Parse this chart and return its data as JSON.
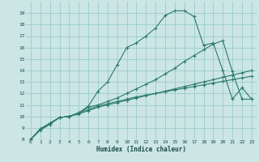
{
  "xlabel": "Humidex (Indice chaleur)",
  "xlim": [
    -0.5,
    23.5
  ],
  "ylim": [
    8,
    20
  ],
  "xticks": [
    0,
    1,
    2,
    3,
    4,
    5,
    6,
    7,
    8,
    9,
    10,
    11,
    12,
    13,
    14,
    15,
    16,
    17,
    18,
    19,
    20,
    21,
    22,
    23
  ],
  "yticks": [
    8,
    9,
    10,
    11,
    12,
    13,
    14,
    15,
    16,
    17,
    18,
    19
  ],
  "background_color": "#cce5e5",
  "grid_color": "#99cccc",
  "line_color": "#2a7a6a",
  "line1_x": [
    0,
    1,
    2,
    3,
    4,
    5,
    6,
    7,
    8,
    9,
    10,
    11,
    12,
    13,
    14,
    15,
    16,
    17,
    18,
    19,
    20,
    21,
    22,
    23
  ],
  "line1_y": [
    8.0,
    8.8,
    9.3,
    9.9,
    10.0,
    10.3,
    10.6,
    10.9,
    11.1,
    11.3,
    11.5,
    11.7,
    11.85,
    12.0,
    12.15,
    12.3,
    12.45,
    12.6,
    12.75,
    12.9,
    13.05,
    13.2,
    13.35,
    13.5
  ],
  "line2_x": [
    0,
    1,
    2,
    3,
    4,
    5,
    6,
    7,
    8,
    9,
    10,
    11,
    12,
    13,
    14,
    15,
    16,
    17,
    18,
    19,
    20,
    21,
    22,
    23
  ],
  "line2_y": [
    8.0,
    8.9,
    9.4,
    9.9,
    10.0,
    10.2,
    10.5,
    10.8,
    11.0,
    11.2,
    11.4,
    11.6,
    11.8,
    12.0,
    12.2,
    12.4,
    12.6,
    12.8,
    13.0,
    13.2,
    13.4,
    13.6,
    13.8,
    14.0
  ],
  "line3_x": [
    0,
    1,
    2,
    3,
    4,
    5,
    6,
    7,
    8,
    9,
    10,
    11,
    12,
    13,
    14,
    15,
    16,
    17,
    18,
    19,
    20,
    21,
    22,
    23
  ],
  "line3_y": [
    8.0,
    8.9,
    9.4,
    9.9,
    10.0,
    10.3,
    10.9,
    12.2,
    13.0,
    14.5,
    16.0,
    16.4,
    17.0,
    17.7,
    18.8,
    19.2,
    19.2,
    18.7,
    16.2,
    16.4,
    14.0,
    11.5,
    12.5,
    11.5
  ],
  "line4_x": [
    0,
    1,
    2,
    3,
    4,
    5,
    6,
    7,
    8,
    9,
    10,
    11,
    12,
    13,
    14,
    15,
    16,
    17,
    18,
    19,
    20,
    21,
    22,
    23
  ],
  "line4_y": [
    8.0,
    8.9,
    9.4,
    9.9,
    10.0,
    10.3,
    10.8,
    11.0,
    11.3,
    11.6,
    12.0,
    12.4,
    12.8,
    13.2,
    13.7,
    14.2,
    14.8,
    15.3,
    15.8,
    16.3,
    16.6,
    13.9,
    11.5,
    11.5
  ]
}
